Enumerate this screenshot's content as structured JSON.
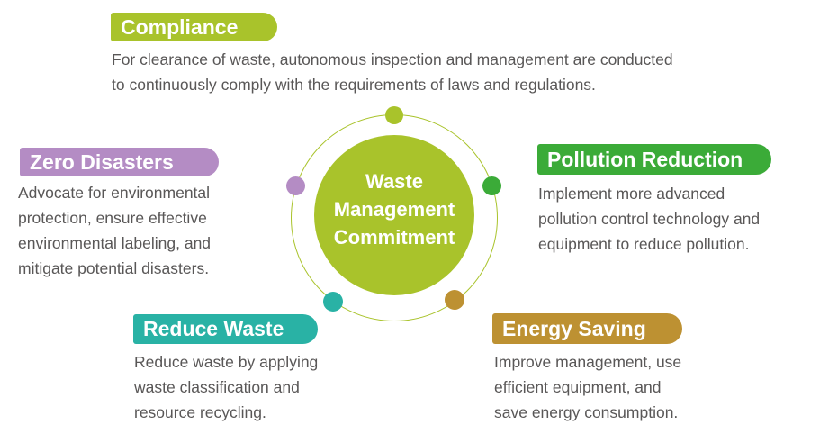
{
  "diagram_title": "Waste Management Commitment",
  "center": {
    "title_lines": "Waste\nManagement\nCommitment",
    "circle_color": "#a9c32b",
    "ring_color": "#a9c32b"
  },
  "text_color": "#595757",
  "items": [
    {
      "id": "compliance",
      "label": "Compliance",
      "color": "#a9c32b",
      "description": "For clearance of waste, autonomous inspection and management are conducted\nto continuously comply with the requirements of laws and regulations."
    },
    {
      "id": "zero-disasters",
      "label": "Zero Disasters",
      "color": "#b48cc4",
      "description": "Advocate for environmental\nprotection, ensure effective\nenvironmental labeling, and\nmitigate potential disasters."
    },
    {
      "id": "pollution-reduction",
      "label": "Pollution Reduction",
      "color": "#3bab38",
      "description": "Implement more advanced\npollution control technology and\nequipment to reduce pollution."
    },
    {
      "id": "reduce-waste",
      "label": "Reduce Waste",
      "color": "#29b2a5",
      "description": "Reduce waste by applying\nwaste classification and\nresource recycling."
    },
    {
      "id": "energy-saving",
      "label": "Energy Saving",
      "color": "#bd9132",
      "description": "Improve management, use\nefficient equipment, and\nsave energy consumption."
    }
  ]
}
